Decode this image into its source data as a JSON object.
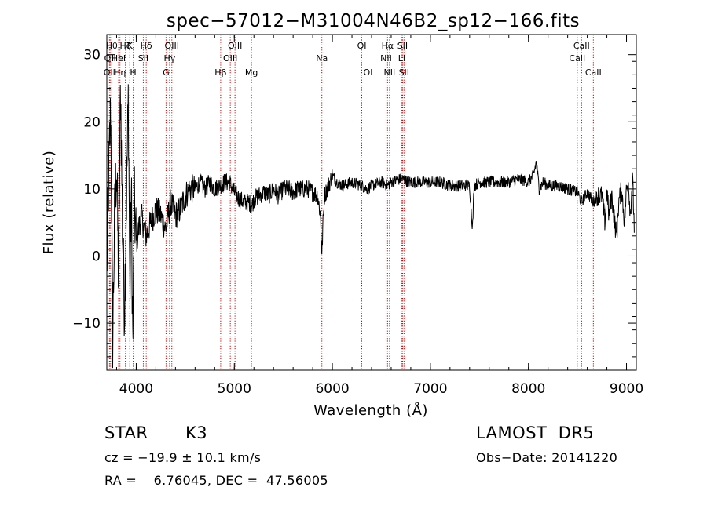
{
  "chart_data": {
    "type": "line",
    "title": "spec−57012−M31004N46B2_sp12−166.fits",
    "xlabel": "Wavelength (Å)",
    "ylabel": "Flux (relative)",
    "xlim": [
      3700,
      9100
    ],
    "ylim": [
      -17,
      33
    ],
    "xticks": [
      4000,
      5000,
      6000,
      7000,
      8000,
      9000
    ],
    "yticks": [
      -10,
      0,
      10,
      20,
      30
    ],
    "xtick_labels": [
      "4000",
      "5000",
      "6000",
      "7000",
      "8000",
      "9000"
    ],
    "ytick_labels": [
      "−10",
      "0",
      "10",
      "20",
      "30"
    ],
    "grid": false,
    "line_color": "#000000",
    "marker_color": "#cc0000",
    "spectrum_anchors": [
      [
        3700,
        -2
      ],
      [
        3720,
        12
      ],
      [
        3740,
        22
      ],
      [
        3760,
        -12
      ],
      [
        3780,
        6
      ],
      [
        3800,
        14
      ],
      [
        3820,
        -4
      ],
      [
        3840,
        26
      ],
      [
        3860,
        4
      ],
      [
        3880,
        -8
      ],
      [
        3900,
        8
      ],
      [
        3920,
        24
      ],
      [
        3935,
        -6
      ],
      [
        3950,
        10
      ],
      [
        3965,
        -14
      ],
      [
        3980,
        8
      ],
      [
        4000,
        2
      ],
      [
        4050,
        6
      ],
      [
        4100,
        3
      ],
      [
        4150,
        5
      ],
      [
        4200,
        7
      ],
      [
        4250,
        6
      ],
      [
        4300,
        4
      ],
      [
        4350,
        8
      ],
      [
        4400,
        6
      ],
      [
        4450,
        7
      ],
      [
        4500,
        9
      ],
      [
        4550,
        10
      ],
      [
        4600,
        10
      ],
      [
        4650,
        11
      ],
      [
        4700,
        10
      ],
      [
        4750,
        11
      ],
      [
        4800,
        10
      ],
      [
        4850,
        10.5
      ],
      [
        4900,
        11
      ],
      [
        4950,
        11
      ],
      [
        5000,
        9.5
      ],
      [
        5050,
        8.5
      ],
      [
        5100,
        8
      ],
      [
        5150,
        8
      ],
      [
        5180,
        7.5
      ],
      [
        5200,
        8.5
      ],
      [
        5250,
        9
      ],
      [
        5300,
        9.5
      ],
      [
        5350,
        9
      ],
      [
        5400,
        10
      ],
      [
        5450,
        9
      ],
      [
        5500,
        10
      ],
      [
        5550,
        10
      ],
      [
        5600,
        9.5
      ],
      [
        5650,
        10
      ],
      [
        5700,
        10
      ],
      [
        5750,
        10
      ],
      [
        5800,
        9.5
      ],
      [
        5850,
        9
      ],
      [
        5880,
        6
      ],
      [
        5893,
        0
      ],
      [
        5905,
        5
      ],
      [
        5920,
        9
      ],
      [
        6000,
        12
      ],
      [
        6050,
        11
      ],
      [
        6100,
        10.5
      ],
      [
        6200,
        11
      ],
      [
        6300,
        10.5
      ],
      [
        6350,
        10
      ],
      [
        6400,
        10.5
      ],
      [
        6500,
        11
      ],
      [
        6563,
        10.5
      ],
      [
        6600,
        11
      ],
      [
        6700,
        11.5
      ],
      [
        6800,
        11
      ],
      [
        6900,
        11
      ],
      [
        7000,
        11
      ],
      [
        7100,
        11
      ],
      [
        7200,
        10.5
      ],
      [
        7300,
        10.5
      ],
      [
        7400,
        10.5
      ],
      [
        7430,
        4
      ],
      [
        7445,
        10.5
      ],
      [
        7500,
        11
      ],
      [
        7600,
        11
      ],
      [
        7700,
        11
      ],
      [
        7800,
        11
      ],
      [
        7900,
        11.5
      ],
      [
        8000,
        11
      ],
      [
        8050,
        12
      ],
      [
        8080,
        14
      ],
      [
        8110,
        10
      ],
      [
        8150,
        11
      ],
      [
        8200,
        10.5
      ],
      [
        8300,
        10.5
      ],
      [
        8400,
        10
      ],
      [
        8500,
        9.5
      ],
      [
        8542,
        8
      ],
      [
        8600,
        9.5
      ],
      [
        8662,
        8
      ],
      [
        8700,
        9
      ],
      [
        8750,
        9
      ],
      [
        8780,
        5
      ],
      [
        8800,
        10
      ],
      [
        8820,
        6
      ],
      [
        8850,
        9
      ],
      [
        8880,
        5
      ],
      [
        8900,
        3
      ],
      [
        8920,
        8
      ],
      [
        8950,
        10
      ],
      [
        8980,
        5
      ],
      [
        9000,
        10
      ],
      [
        9020,
        11
      ],
      [
        9040,
        6
      ],
      [
        9060,
        12
      ],
      [
        9080,
        4
      ]
    ],
    "line_markers": [
      {
        "wavelength": 3727,
        "label": "OII",
        "row": 3
      },
      {
        "wavelength": 3734,
        "label": "OII",
        "row": 2
      },
      {
        "wavelength": 3750,
        "label": "Hθ",
        "row": 1
      },
      {
        "wavelength": 3820,
        "label": "HeI",
        "row": 2
      },
      {
        "wavelength": 3834,
        "label": "Hη",
        "row": 3
      },
      {
        "wavelength": 3889,
        "label": "Hζ",
        "row": 1
      },
      {
        "wavelength": 3934,
        "label": "K",
        "row": 1
      },
      {
        "wavelength": 3969,
        "label": "H",
        "row": 3
      },
      {
        "wavelength": 4072,
        "label": "SII",
        "row": 2
      },
      {
        "wavelength": 4102,
        "label": "Hδ",
        "row": 1
      },
      {
        "wavelength": 4304,
        "label": "G",
        "row": 3
      },
      {
        "wavelength": 4340,
        "label": "Hγ",
        "row": 2
      },
      {
        "wavelength": 4363,
        "label": "OIII",
        "row": 1
      },
      {
        "wavelength": 4861,
        "label": "Hβ",
        "row": 3
      },
      {
        "wavelength": 4959,
        "label": "OIII",
        "row": 2
      },
      {
        "wavelength": 5007,
        "label": "OIII",
        "row": 1
      },
      {
        "wavelength": 5175,
        "label": "Mg",
        "row": 3
      },
      {
        "wavelength": 5893,
        "label": "Na",
        "row": 2
      },
      {
        "wavelength": 6300,
        "label": "OI",
        "row": 1
      },
      {
        "wavelength": 6364,
        "label": "OI",
        "row": 3
      },
      {
        "wavelength": 6548,
        "label": "NII",
        "row": 2
      },
      {
        "wavelength": 6563,
        "label": "Hα",
        "row": 1
      },
      {
        "wavelength": 6583,
        "label": "NII",
        "row": 3
      },
      {
        "wavelength": 6707,
        "label": "Li",
        "row": 2
      },
      {
        "wavelength": 6716,
        "label": "SII",
        "row": 1
      },
      {
        "wavelength": 6731,
        "label": "SII",
        "row": 3
      },
      {
        "wavelength": 8498,
        "label": "CaII",
        "row": 2
      },
      {
        "wavelength": 8542,
        "label": "CaII",
        "row": 1
      },
      {
        "wavelength": 8662,
        "label": "CaII",
        "row": 3
      }
    ]
  },
  "info": {
    "class": "STAR",
    "subclass": "K3",
    "survey": "LAMOST  DR5",
    "cz": "cz = −19.9 ± 10.1 km/s",
    "obs_date": "Obs−Date: 20141220",
    "coords": "RA =    6.76045, DEC =  47.56005"
  }
}
